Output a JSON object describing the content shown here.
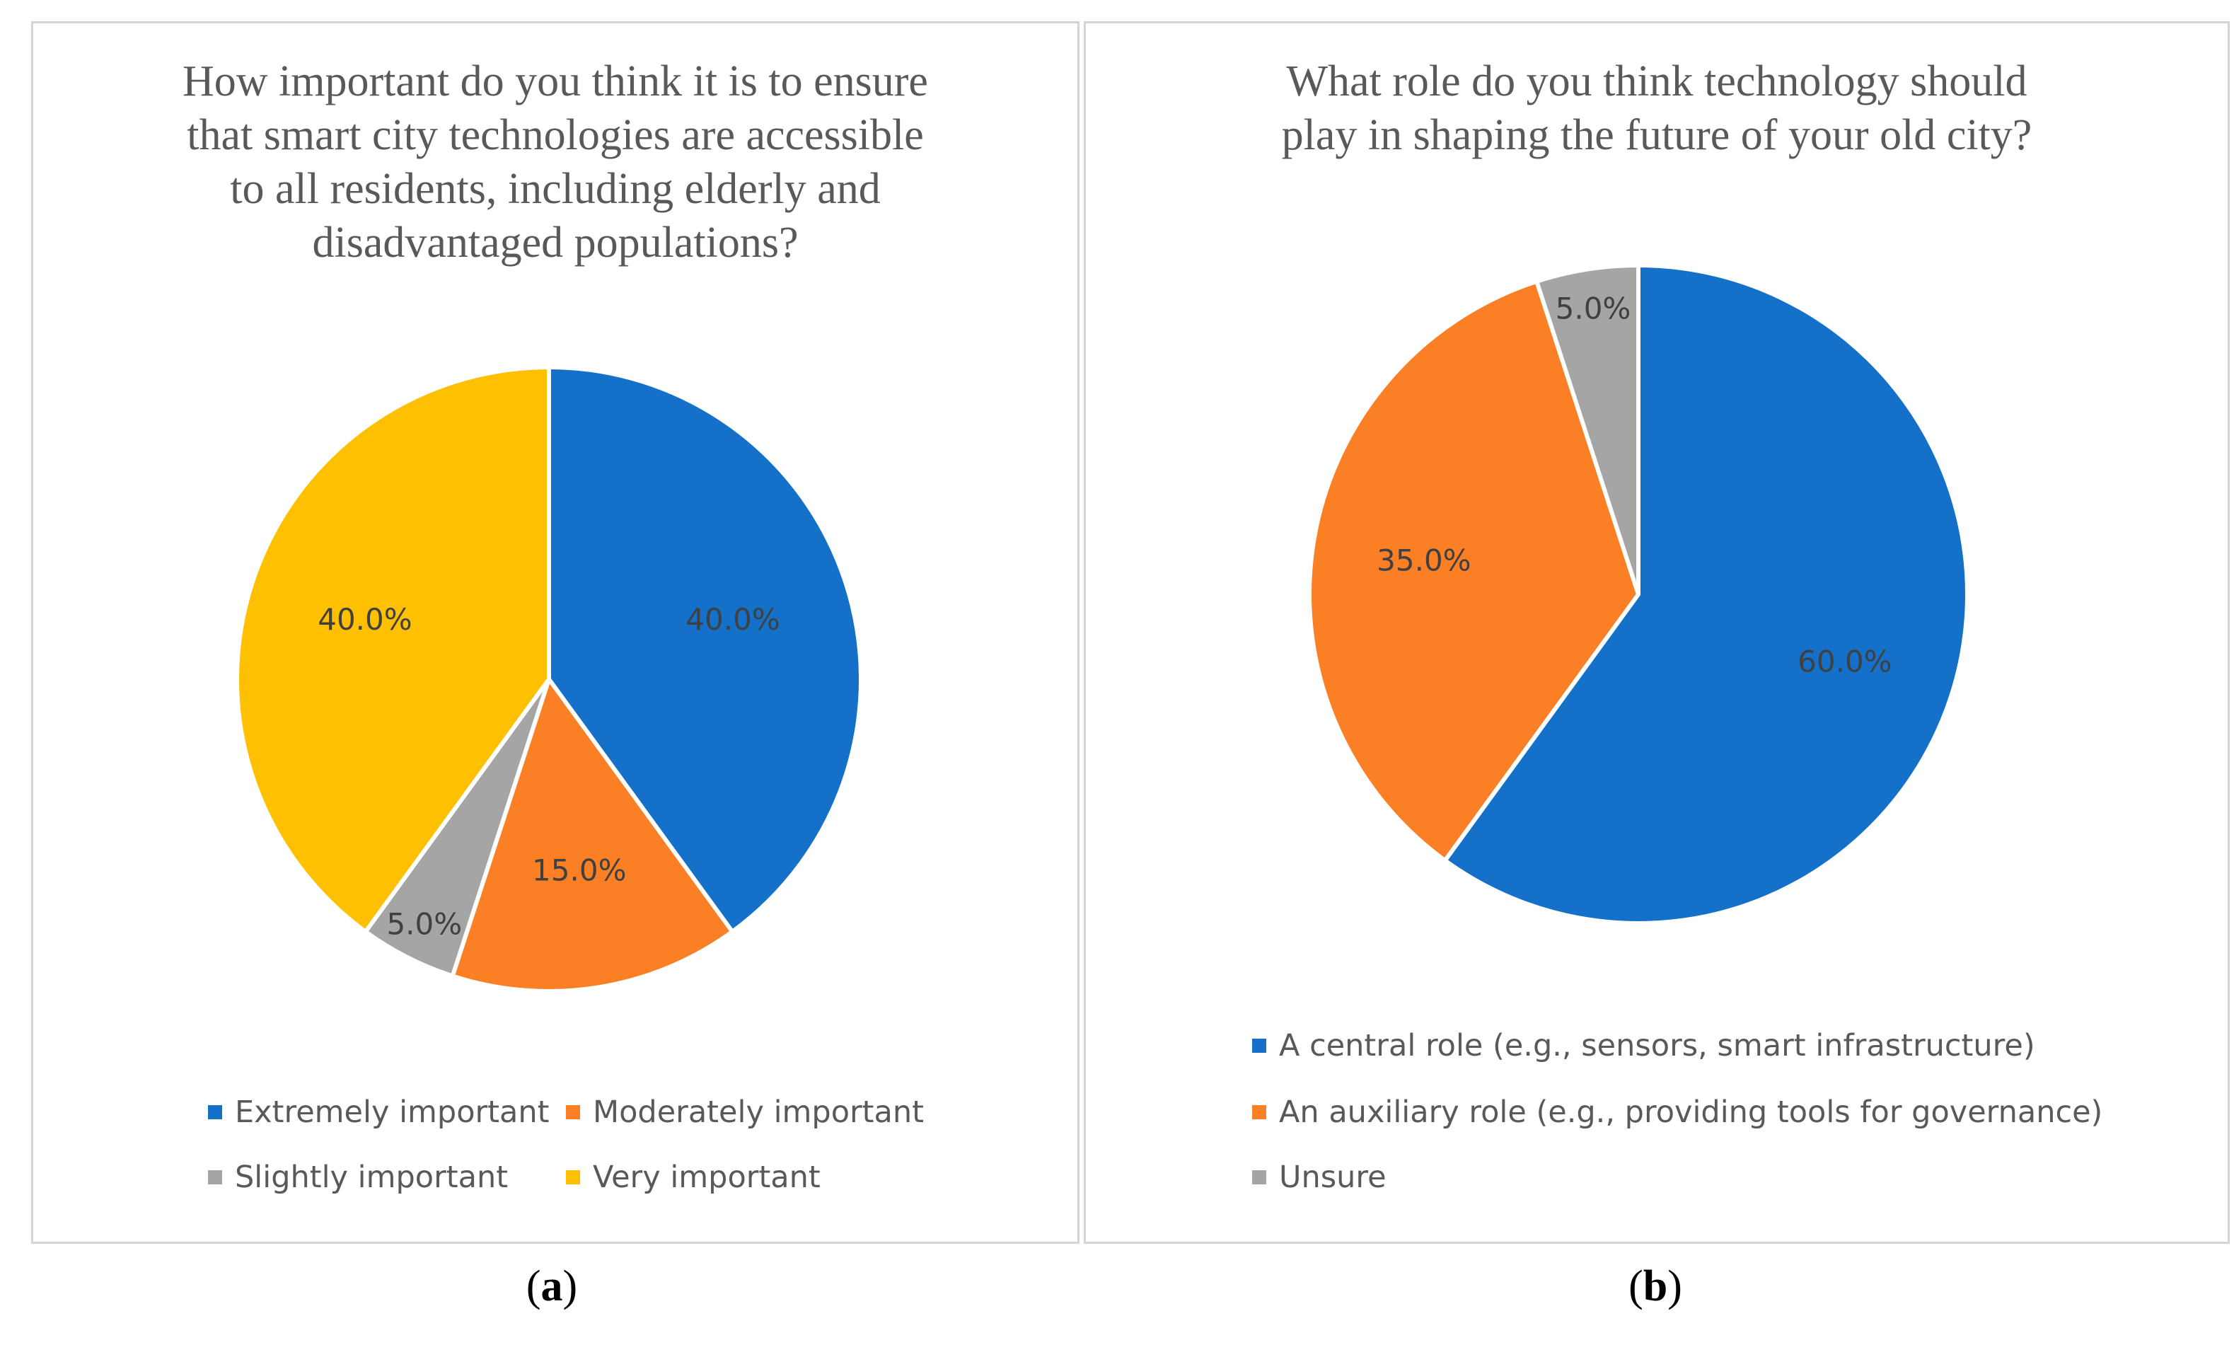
{
  "chart_data": [
    {
      "type": "pie",
      "title": "How important do you think it is to ensure that smart city technologies are accessible to all residents, including elderly and disadvantaged populations?",
      "title_lines": [
        "How important do you think it is to ensure",
        "that smart city technologies are accessible",
        "to all residents, including elderly and",
        "disadvantaged populations?"
      ],
      "slices": [
        {
          "name": "Extremely important",
          "value": 40.0,
          "label": "40.0%",
          "color": "#1470c8"
        },
        {
          "name": "Moderately important",
          "value": 15.0,
          "label": "15.0%",
          "color": "#fb7f25"
        },
        {
          "name": "Slightly important",
          "value": 5.0,
          "label": "5.0%",
          "color": "#a5a5a5"
        },
        {
          "name": "Very important",
          "value": 40.0,
          "label": "40.0%",
          "color": "#fec000"
        }
      ],
      "legend": [
        "Extremely important",
        "Moderately important",
        "Slightly important",
        "Very important"
      ],
      "legend_position": "bottom",
      "caption": "a"
    },
    {
      "type": "pie",
      "title": "What role do you think technology should play in shaping the future of your old city?",
      "title_lines": [
        "What role do you think technology should",
        "play in shaping the future of your old city?"
      ],
      "slices": [
        {
          "name": "A central role (e.g., sensors, smart infrastructure)",
          "value": 60.0,
          "label": "60.0%",
          "color": "#1470c8"
        },
        {
          "name": "An auxiliary role (e.g., providing tools for governance)",
          "value": 35.0,
          "label": "35.0%",
          "color": "#fb7f25"
        },
        {
          "name": "Unsure",
          "value": 5.0,
          "label": "5.0%",
          "color": "#a5a5a5"
        }
      ],
      "legend": [
        "A central role (e.g., sensors, smart infrastructure)",
        "An auxiliary role (e.g., providing tools for governance)",
        "Unsure"
      ],
      "legend_position": "bottom",
      "caption": "b"
    }
  ]
}
